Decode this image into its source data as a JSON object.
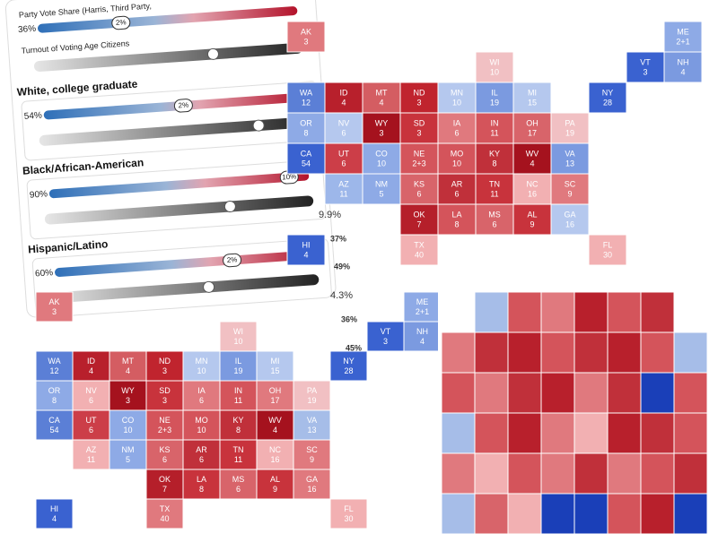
{
  "panel": {
    "intro": {
      "share_label": "Party Vote Share (Harris, Third Party,",
      "share_left": "36%",
      "share_center": "2%",
      "turnout_label": "Turnout of Voting Age Citizens"
    },
    "groups": [
      {
        "title": "White, college graduate",
        "share_left": "54%",
        "share_center": "2%"
      },
      {
        "title": "Black/African-American",
        "share_left": "90%",
        "share_center": "10%"
      },
      {
        "title": "Hispanic/Latino",
        "share_left": "60%",
        "share_center": "2%"
      }
    ],
    "floating_values": [
      "9.9%",
      "37%",
      "49%",
      "4.3%",
      "36%",
      "45%"
    ]
  },
  "states": [
    {
      "abbr": "WA",
      "votes": "12"
    },
    {
      "abbr": "OR",
      "votes": "8"
    },
    {
      "abbr": "CA",
      "votes": "54"
    },
    {
      "abbr": "NV",
      "votes": "6"
    },
    {
      "abbr": "ID",
      "votes": "4"
    },
    {
      "abbr": "MT",
      "votes": "4"
    },
    {
      "abbr": "WY",
      "votes": "3"
    },
    {
      "abbr": "UT",
      "votes": "6"
    },
    {
      "abbr": "AZ",
      "votes": "11"
    },
    {
      "abbr": "CO",
      "votes": "10"
    },
    {
      "abbr": "NM",
      "votes": "5"
    },
    {
      "abbr": "ND",
      "votes": "3"
    },
    {
      "abbr": "SD",
      "votes": "3"
    },
    {
      "abbr": "NE",
      "votes": "2+3"
    },
    {
      "abbr": "KS",
      "votes": "6"
    },
    {
      "abbr": "OK",
      "votes": "7"
    },
    {
      "abbr": "TX",
      "votes": "40"
    },
    {
      "abbr": "MN",
      "votes": "10"
    },
    {
      "abbr": "IA",
      "votes": "6"
    },
    {
      "abbr": "MO",
      "votes": "10"
    },
    {
      "abbr": "AR",
      "votes": "6"
    },
    {
      "abbr": "LA",
      "votes": "8"
    },
    {
      "abbr": "WI",
      "votes": "10"
    },
    {
      "abbr": "IL",
      "votes": "19"
    },
    {
      "abbr": "MI",
      "votes": "15"
    },
    {
      "abbr": "IN",
      "votes": "11"
    },
    {
      "abbr": "OH",
      "votes": "17"
    },
    {
      "abbr": "KY",
      "votes": "8"
    },
    {
      "abbr": "TN",
      "votes": "11"
    },
    {
      "abbr": "MS",
      "votes": "6"
    },
    {
      "abbr": "AL",
      "votes": "9"
    },
    {
      "abbr": "GA",
      "votes": "16"
    },
    {
      "abbr": "FL",
      "votes": "30"
    },
    {
      "abbr": "SC",
      "votes": "9"
    },
    {
      "abbr": "NC",
      "votes": "16"
    },
    {
      "abbr": "VA",
      "votes": "13"
    },
    {
      "abbr": "WV",
      "votes": "4"
    },
    {
      "abbr": "PA",
      "votes": "19"
    },
    {
      "abbr": "NY",
      "votes": "28"
    },
    {
      "abbr": "VT",
      "votes": "3"
    },
    {
      "abbr": "NH",
      "votes": "4"
    },
    {
      "abbr": "ME",
      "votes": "2+1"
    },
    {
      "abbr": "HI",
      "votes": "4"
    },
    {
      "abbr": "AK",
      "votes": "3"
    }
  ],
  "us_maps": [
    {
      "fills": [
        "#5b7fd6",
        "#8eaae6",
        "#3a62d0",
        "#b5c8ee",
        "#b8202c",
        "#d45d62",
        "#a5121e",
        "#cc3e48",
        "#9db7ea",
        "#8eaae6",
        "#8eaae6",
        "#c0242e",
        "#c8333c",
        "#d4545b",
        "#d8646a",
        "#b51f2a",
        "#f2b0b2",
        "#b5c8ee",
        "#e0797e",
        "#d4545b",
        "#c0303a",
        "#d4545b",
        "#f1c0c3",
        "#7b9ae0",
        "#b5c8ee",
        "#d4545b",
        "#d8646a",
        "#c0303a",
        "#c8333c",
        "#d8646a",
        "#c8333c",
        "#b5c8ee",
        "#f2b0b2",
        "#e0797e",
        "#f2b0b2",
        "#7b9ae0",
        "#a5121e",
        "#f1c0c3",
        "#3a62d0",
        "#3a62d0",
        "#7b9ae0",
        "#8eaae6",
        "#3a62d0",
        "#e0797e"
      ]
    },
    {
      "fills": [
        "#5b7fd6",
        "#8eaae6",
        "#5b7fd6",
        "#f2b0b2",
        "#b8202c",
        "#d45d62",
        "#a5121e",
        "#cc3e48",
        "#f2b0b2",
        "#8eaae6",
        "#8eaae6",
        "#c0242e",
        "#c8333c",
        "#d4545b",
        "#d8646a",
        "#b51f2a",
        "#e0797e",
        "#b5c8ee",
        "#e0797e",
        "#d4545b",
        "#c0303a",
        "#c8333c",
        "#f1c0c3",
        "#7b9ae0",
        "#b5c8ee",
        "#d4545b",
        "#e0797e",
        "#c0303a",
        "#c8333c",
        "#d8646a",
        "#c8333c",
        "#e0797e",
        "#f2b0b2",
        "#e0797e",
        "#f2b0b2",
        "#a6bde8",
        "#a5121e",
        "#f1c0c3",
        "#3a62d0",
        "#3a62d0",
        "#7b9ae0",
        "#8eaae6",
        "#3a62d0",
        "#e0797e"
      ]
    }
  ],
  "wisconsin_county_fills": [
    "#ffffff",
    "#a6bde8",
    "#d4545b",
    "#e0797e",
    "#b8202c",
    "#d4545b",
    "#c0303a",
    "#ffffff",
    "#e0797e",
    "#c0303a",
    "#b8202c",
    "#d4545b",
    "#c0303a",
    "#b8202c",
    "#d4545b",
    "#a6bde8",
    "#d4545b",
    "#e0797e",
    "#c0303a",
    "#b8202c",
    "#e0797e",
    "#c0303a",
    "#1a3fb8",
    "#d4545b",
    "#a6bde8",
    "#d4545b",
    "#b8202c",
    "#e0797e",
    "#f2b0b2",
    "#b8202c",
    "#c0303a",
    "#d4545b",
    "#e0797e",
    "#f2b0b2",
    "#d4545b",
    "#e0797e",
    "#c0303a",
    "#e0797e",
    "#d4545b",
    "#c0303a",
    "#a6bde8",
    "#d8646a",
    "#f2b0b2",
    "#1a3fb8",
    "#1a3fb8",
    "#d4545b",
    "#b8202c",
    "#1a3fb8"
  ]
}
